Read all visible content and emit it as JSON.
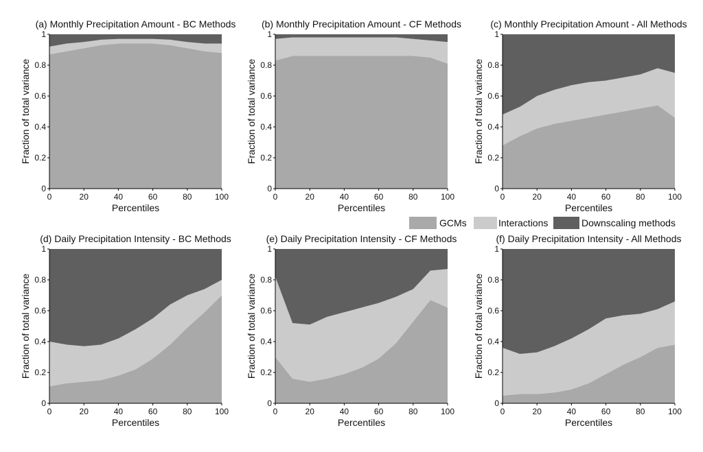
{
  "figure": {
    "legend": [
      {
        "label": "GCMs",
        "color": "#a9a9a9"
      },
      {
        "label": "Interactions",
        "color": "#cbcbcb"
      },
      {
        "label": "Downscaling methods",
        "color": "#5f5f5f"
      }
    ]
  },
  "chart_data": [
    {
      "type": "area",
      "title": "(a) Monthly Precipitation Amount - BC Methods",
      "xlabel": "Percentiles",
      "ylabel": "Fraction of total variance",
      "xlim": [
        0,
        100
      ],
      "ylim": [
        0,
        1
      ],
      "xticks": [
        "0",
        "20",
        "40",
        "60",
        "80",
        "100"
      ],
      "yticks": [
        "0",
        "0.2",
        "0.4",
        "0.6",
        "0.8",
        "1"
      ],
      "stacked": true,
      "x": [
        0,
        10,
        20,
        30,
        40,
        50,
        60,
        70,
        80,
        90,
        100
      ],
      "series": [
        {
          "name": "GCMs",
          "values": [
            0.87,
            0.89,
            0.91,
            0.93,
            0.94,
            0.94,
            0.94,
            0.93,
            0.91,
            0.89,
            0.88
          ]
        },
        {
          "name": "Interactions",
          "values": [
            0.05,
            0.05,
            0.04,
            0.035,
            0.03,
            0.03,
            0.03,
            0.035,
            0.04,
            0.05,
            0.06
          ]
        },
        {
          "name": "Downscaling methods",
          "values": [
            0.08,
            0.06,
            0.05,
            0.035,
            0.03,
            0.03,
            0.03,
            0.035,
            0.05,
            0.06,
            0.06
          ]
        }
      ]
    },
    {
      "type": "area",
      "title": "(b) Monthly Precipitation Amount - CF Methods",
      "xlabel": "Percentiles",
      "ylabel": "Fraction of total variance",
      "xlim": [
        0,
        100
      ],
      "ylim": [
        0,
        1
      ],
      "xticks": [
        "0",
        "20",
        "40",
        "60",
        "80",
        "100"
      ],
      "yticks": [
        "0",
        "0.2",
        "0.4",
        "0.6",
        "0.8",
        "1"
      ],
      "stacked": true,
      "x": [
        0,
        10,
        20,
        30,
        40,
        50,
        60,
        70,
        80,
        90,
        100
      ],
      "series": [
        {
          "name": "GCMs",
          "values": [
            0.83,
            0.86,
            0.86,
            0.86,
            0.86,
            0.86,
            0.86,
            0.86,
            0.86,
            0.85,
            0.81
          ]
        },
        {
          "name": "Interactions",
          "values": [
            0.14,
            0.12,
            0.12,
            0.12,
            0.12,
            0.12,
            0.12,
            0.12,
            0.11,
            0.11,
            0.14
          ]
        },
        {
          "name": "Downscaling methods",
          "values": [
            0.03,
            0.02,
            0.02,
            0.02,
            0.02,
            0.02,
            0.02,
            0.02,
            0.03,
            0.04,
            0.05
          ]
        }
      ]
    },
    {
      "type": "area",
      "title": "(c) Monthly Precipitation Amount - All Methods",
      "xlabel": "Percentiles",
      "ylabel": "Fraction of total variance",
      "xlim": [
        0,
        100
      ],
      "ylim": [
        0,
        1
      ],
      "xticks": [
        "0",
        "20",
        "40",
        "60",
        "80",
        "100"
      ],
      "yticks": [
        "0",
        "0.2",
        "0.4",
        "0.6",
        "0.8",
        "1"
      ],
      "stacked": true,
      "x": [
        0,
        10,
        20,
        30,
        40,
        50,
        60,
        70,
        80,
        90,
        100
      ],
      "series": [
        {
          "name": "GCMs",
          "values": [
            0.28,
            0.34,
            0.39,
            0.42,
            0.44,
            0.46,
            0.48,
            0.5,
            0.52,
            0.54,
            0.46
          ]
        },
        {
          "name": "Interactions",
          "values": [
            0.2,
            0.19,
            0.21,
            0.22,
            0.23,
            0.23,
            0.22,
            0.22,
            0.22,
            0.24,
            0.29
          ]
        },
        {
          "name": "Downscaling methods",
          "values": [
            0.52,
            0.47,
            0.4,
            0.36,
            0.33,
            0.31,
            0.3,
            0.28,
            0.26,
            0.22,
            0.25
          ]
        }
      ]
    },
    {
      "type": "area",
      "title": "(d) Daily Precipitation Intensity - BC Methods",
      "xlabel": "Percentiles",
      "ylabel": "Fraction of total variance",
      "xlim": [
        0,
        100
      ],
      "ylim": [
        0,
        1
      ],
      "xticks": [
        "0",
        "20",
        "40",
        "60",
        "80",
        "100"
      ],
      "yticks": [
        "0",
        "0.2",
        "0.4",
        "0.6",
        "0.8",
        "1"
      ],
      "stacked": true,
      "x": [
        0,
        10,
        20,
        30,
        40,
        50,
        60,
        70,
        80,
        90,
        100
      ],
      "series": [
        {
          "name": "GCMs",
          "values": [
            0.11,
            0.13,
            0.14,
            0.15,
            0.18,
            0.22,
            0.29,
            0.38,
            0.49,
            0.59,
            0.7
          ]
        },
        {
          "name": "Interactions",
          "values": [
            0.29,
            0.25,
            0.23,
            0.23,
            0.24,
            0.26,
            0.26,
            0.26,
            0.21,
            0.15,
            0.1
          ]
        },
        {
          "name": "Downscaling methods",
          "values": [
            0.6,
            0.62,
            0.63,
            0.62,
            0.58,
            0.52,
            0.45,
            0.36,
            0.3,
            0.26,
            0.2
          ]
        }
      ]
    },
    {
      "type": "area",
      "title": "(e) Daily Precipitation Intensity - CF Methods",
      "xlabel": "Percentiles",
      "ylabel": "Fraction of total variance",
      "xlim": [
        0,
        100
      ],
      "ylim": [
        0,
        1
      ],
      "xticks": [
        "0",
        "20",
        "40",
        "60",
        "80",
        "100"
      ],
      "yticks": [
        "0",
        "0.2",
        "0.4",
        "0.6",
        "0.8",
        "1"
      ],
      "stacked": true,
      "x": [
        0,
        10,
        20,
        30,
        40,
        50,
        60,
        70,
        80,
        90,
        100
      ],
      "series": [
        {
          "name": "GCMs",
          "values": [
            0.3,
            0.16,
            0.14,
            0.16,
            0.19,
            0.23,
            0.29,
            0.39,
            0.53,
            0.67,
            0.62
          ]
        },
        {
          "name": "Interactions",
          "values": [
            0.52,
            0.36,
            0.37,
            0.4,
            0.4,
            0.39,
            0.36,
            0.3,
            0.21,
            0.19,
            0.25
          ]
        },
        {
          "name": "Downscaling methods",
          "values": [
            0.18,
            0.48,
            0.49,
            0.44,
            0.41,
            0.38,
            0.35,
            0.31,
            0.26,
            0.14,
            0.13
          ]
        }
      ]
    },
    {
      "type": "area",
      "title": "(f) Daily Precipitation Intensity - All Methods",
      "xlabel": "Percentiles",
      "ylabel": "Fraction of total variance",
      "xlim": [
        0,
        100
      ],
      "ylim": [
        0,
        1
      ],
      "xticks": [
        "0",
        "20",
        "40",
        "60",
        "80",
        "100"
      ],
      "yticks": [
        "0",
        "0.2",
        "0.4",
        "0.6",
        "0.8",
        "1"
      ],
      "stacked": true,
      "x": [
        0,
        10,
        20,
        30,
        40,
        50,
        60,
        70,
        80,
        90,
        100
      ],
      "series": [
        {
          "name": "GCMs",
          "values": [
            0.05,
            0.06,
            0.06,
            0.07,
            0.09,
            0.13,
            0.19,
            0.25,
            0.3,
            0.36,
            0.38
          ]
        },
        {
          "name": "Interactions",
          "values": [
            0.31,
            0.26,
            0.27,
            0.3,
            0.33,
            0.35,
            0.36,
            0.32,
            0.28,
            0.25,
            0.28
          ]
        },
        {
          "name": "Downscaling methods",
          "values": [
            0.64,
            0.68,
            0.67,
            0.63,
            0.58,
            0.52,
            0.45,
            0.43,
            0.42,
            0.39,
            0.34
          ]
        }
      ]
    }
  ]
}
